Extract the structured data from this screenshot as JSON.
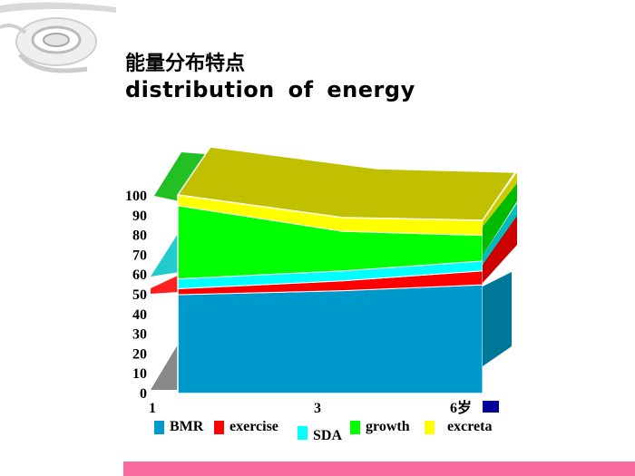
{
  "title": {
    "zh": "能量分布特点",
    "en": "distribution  of  energy"
  },
  "colors": {
    "bmr": "#0099cc",
    "exercise": "#ff0000",
    "sda": "#00ffff",
    "growth": "#00ff00",
    "excreta": "#ffff00",
    "top_face": "#c0c000",
    "accent_box": "#000099",
    "bottom_bar": "#f76aa0"
  },
  "chart_data": {
    "type": "area",
    "x": [
      "1",
      "3",
      "6岁"
    ],
    "yticks": [
      "0",
      "10",
      "20",
      "30",
      "40",
      "50",
      "60",
      "70",
      "80",
      "90",
      "100"
    ],
    "ylim": [
      0,
      100
    ],
    "stacking": "percent",
    "series": [
      {
        "name": "BMR",
        "values": [
          50,
          52,
          55
        ]
      },
      {
        "name": "exercise",
        "values": [
          3,
          5,
          7
        ]
      },
      {
        "name": "SDA",
        "values": [
          5,
          5,
          5
        ]
      },
      {
        "name": "growth",
        "values": [
          37,
          20,
          13
        ]
      },
      {
        "name": "excreta",
        "values": [
          5,
          18,
          20
        ]
      }
    ],
    "legend": [
      "BMR",
      "exercise",
      "SDA",
      "growth",
      "excreta"
    ],
    "legend_placement": "bottom",
    "style": "3d-area"
  },
  "legend": {
    "bmr": "BMR",
    "exercise": "exercise",
    "sda": "SDA",
    "growth": "growth",
    "excreta": "excreta"
  }
}
